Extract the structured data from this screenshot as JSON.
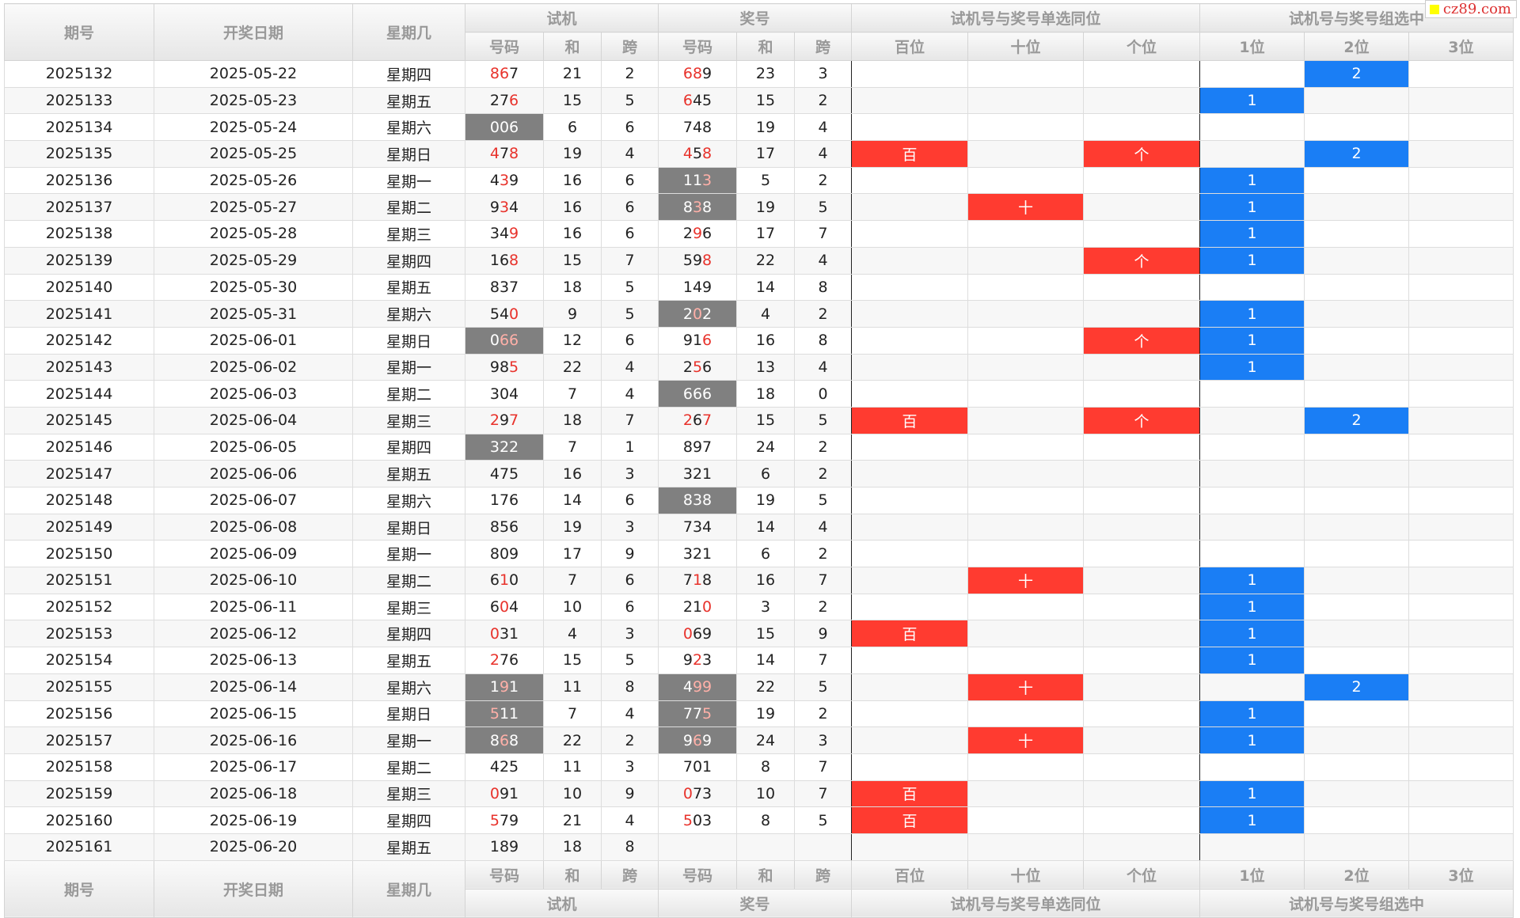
{
  "watermark": "cz89.com",
  "header": {
    "issue": "期号",
    "date": "开奖日期",
    "weekday": "星期几",
    "groups": [
      "试机",
      "奖号",
      "试机号与奖号单选同位",
      "试机号与奖号组选中"
    ],
    "sub": [
      "号码",
      "和",
      "跨",
      "号码",
      "和",
      "跨",
      "百位",
      "十位",
      "个位",
      "1位",
      "2位",
      "3位"
    ]
  },
  "rows": [
    [
      "2025132",
      "2025-05-22",
      "星期四",
      "867",
      21,
      2,
      "689",
      23,
      3,
      null,
      null,
      null,
      null,
      2,
      null
    ],
    [
      "2025133",
      "2025-05-23",
      "星期五",
      "276",
      15,
      5,
      "645",
      15,
      2,
      null,
      null,
      null,
      1,
      null,
      null
    ],
    [
      "2025134",
      "2025-05-24",
      "星期六",
      "006",
      6,
      6,
      "748",
      19,
      4,
      null,
      null,
      null,
      null,
      null,
      null
    ],
    [
      "2025135",
      "2025-05-25",
      "星期日",
      "478",
      19,
      4,
      "458",
      17,
      4,
      "百",
      null,
      "个",
      null,
      2,
      null
    ],
    [
      "2025136",
      "2025-05-26",
      "星期一",
      "439",
      16,
      6,
      "113",
      5,
      2,
      null,
      null,
      null,
      1,
      null,
      null
    ],
    [
      "2025137",
      "2025-05-27",
      "星期二",
      "934",
      16,
      6,
      "838",
      19,
      5,
      null,
      "十",
      null,
      1,
      null,
      null
    ],
    [
      "2025138",
      "2025-05-28",
      "星期三",
      "349",
      16,
      6,
      "296",
      17,
      7,
      null,
      null,
      null,
      1,
      null,
      null
    ],
    [
      "2025139",
      "2025-05-29",
      "星期四",
      "168",
      15,
      7,
      "598",
      22,
      4,
      null,
      null,
      "个",
      1,
      null,
      null
    ],
    [
      "2025140",
      "2025-05-30",
      "星期五",
      "837",
      18,
      5,
      "149",
      14,
      8,
      null,
      null,
      null,
      null,
      null,
      null
    ],
    [
      "2025141",
      "2025-05-31",
      "星期六",
      "540",
      9,
      5,
      "202",
      4,
      2,
      null,
      null,
      null,
      1,
      null,
      null
    ],
    [
      "2025142",
      "2025-06-01",
      "星期日",
      "066",
      12,
      6,
      "916",
      16,
      8,
      null,
      null,
      "个",
      1,
      null,
      null
    ],
    [
      "2025143",
      "2025-06-02",
      "星期一",
      "985",
      22,
      4,
      "256",
      13,
      4,
      null,
      null,
      null,
      1,
      null,
      null
    ],
    [
      "2025144",
      "2025-06-03",
      "星期二",
      "304",
      7,
      4,
      "666",
      18,
      0,
      null,
      null,
      null,
      null,
      null,
      null
    ],
    [
      "2025145",
      "2025-06-04",
      "星期三",
      "297",
      18,
      7,
      "267",
      15,
      5,
      "百",
      null,
      "个",
      null,
      2,
      null
    ],
    [
      "2025146",
      "2025-06-05",
      "星期四",
      "322",
      7,
      1,
      "897",
      24,
      2,
      null,
      null,
      null,
      null,
      null,
      null
    ],
    [
      "2025147",
      "2025-06-06",
      "星期五",
      "475",
      16,
      3,
      "321",
      6,
      2,
      null,
      null,
      null,
      null,
      null,
      null
    ],
    [
      "2025148",
      "2025-06-07",
      "星期六",
      "176",
      14,
      6,
      "838",
      19,
      5,
      null,
      null,
      null,
      null,
      null,
      null
    ],
    [
      "2025149",
      "2025-06-08",
      "星期日",
      "856",
      19,
      3,
      "734",
      14,
      4,
      null,
      null,
      null,
      null,
      null,
      null
    ],
    [
      "2025150",
      "2025-06-09",
      "星期一",
      "809",
      17,
      9,
      "321",
      6,
      2,
      null,
      null,
      null,
      null,
      null,
      null
    ],
    [
      "2025151",
      "2025-06-10",
      "星期二",
      "610",
      7,
      6,
      "718",
      16,
      7,
      null,
      "十",
      null,
      1,
      null,
      null
    ],
    [
      "2025152",
      "2025-06-11",
      "星期三",
      "604",
      10,
      6,
      "210",
      3,
      2,
      null,
      null,
      null,
      1,
      null,
      null
    ],
    [
      "2025153",
      "2025-06-12",
      "星期四",
      "031",
      4,
      3,
      "069",
      15,
      9,
      "百",
      null,
      null,
      1,
      null,
      null
    ],
    [
      "2025154",
      "2025-06-13",
      "星期五",
      "276",
      15,
      5,
      "923",
      14,
      7,
      null,
      null,
      null,
      1,
      null,
      null
    ],
    [
      "2025155",
      "2025-06-14",
      "星期六",
      "191",
      11,
      8,
      "499",
      22,
      5,
      null,
      "十",
      null,
      null,
      2,
      null
    ],
    [
      "2025156",
      "2025-06-15",
      "星期日",
      "511",
      7,
      4,
      "775",
      19,
      2,
      null,
      null,
      null,
      1,
      null,
      null
    ],
    [
      "2025157",
      "2025-06-16",
      "星期一",
      "868",
      22,
      2,
      "969",
      24,
      3,
      null,
      "十",
      null,
      1,
      null,
      null
    ],
    [
      "2025158",
      "2025-06-17",
      "星期二",
      "425",
      11,
      3,
      "701",
      8,
      7,
      null,
      null,
      null,
      null,
      null,
      null
    ],
    [
      "2025159",
      "2025-06-18",
      "星期三",
      "091",
      10,
      9,
      "073",
      10,
      7,
      "百",
      null,
      null,
      1,
      null,
      null
    ],
    [
      "2025160",
      "2025-06-19",
      "星期四",
      "579",
      21,
      4,
      "503",
      8,
      5,
      "百",
      null,
      null,
      1,
      null,
      null
    ],
    [
      "2025161",
      "2025-06-20",
      "星期五",
      "189",
      18,
      8,
      null,
      null,
      null,
      null,
      null,
      null,
      null,
      null,
      null
    ]
  ]
}
